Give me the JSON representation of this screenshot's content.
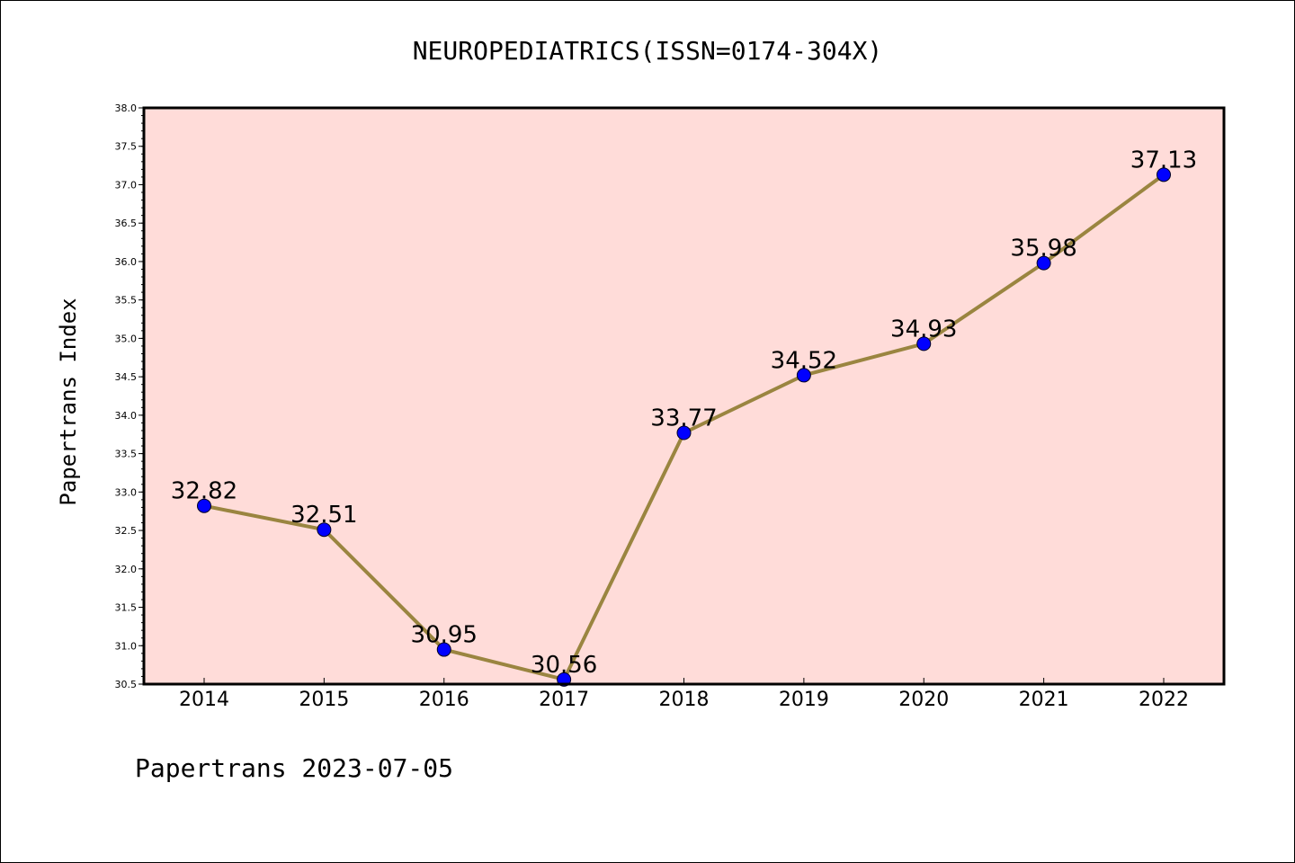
{
  "chart_data": {
    "type": "line",
    "title": "NEUROPEDIATRICS(ISSN=0174-304X)",
    "xlabel": "",
    "ylabel": "Papertrans Index",
    "categories": [
      "2014",
      "2015",
      "2016",
      "2017",
      "2018",
      "2019",
      "2020",
      "2021",
      "2022"
    ],
    "series": [
      {
        "values": [
          32.82,
          32.51,
          30.95,
          30.56,
          33.77,
          34.52,
          34.93,
          35.98,
          37.13
        ],
        "labels": [
          "32.82",
          "32.51",
          "30.95",
          "30.56",
          "33.77",
          "34.52",
          "34.93",
          "35.98",
          "37.13"
        ]
      }
    ],
    "ylim": [
      30.5,
      38.0
    ],
    "yticks": [
      "30.5",
      "31.0",
      "31.5",
      "32.0",
      "32.5",
      "33.0",
      "33.5",
      "34.0",
      "34.5",
      "35.0",
      "35.5",
      "36.0",
      "36.5",
      "37.0",
      "37.5",
      "38.0"
    ],
    "grid": false,
    "legend": "none",
    "colors": {
      "plot_background": "#ffdcd9",
      "line": "#9a8540",
      "marker": "#0000ff"
    }
  },
  "footer": {
    "text": "Papertrans 2023-07-05"
  }
}
